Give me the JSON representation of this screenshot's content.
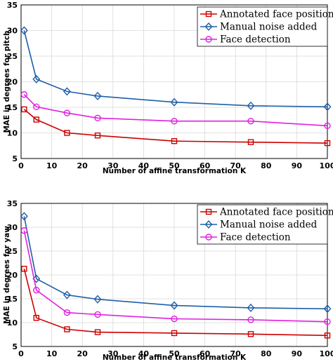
{
  "chart_data": [
    {
      "type": "line",
      "xlabel": "Number of affine transformation K",
      "ylabel": "MAE in degrees for pitch",
      "xlim": [
        0,
        100
      ],
      "ylim": [
        5,
        35
      ],
      "xticks": [
        0,
        10,
        20,
        30,
        40,
        50,
        60,
        70,
        80,
        90,
        100
      ],
      "yticks": [
        5,
        10,
        15,
        20,
        25,
        30,
        35
      ],
      "grid": true,
      "legend_position": "top-right",
      "x": [
        1,
        5,
        15,
        25,
        50,
        75,
        100
      ],
      "series": [
        {
          "name": "Annotated face position",
          "color": "#cc0000",
          "marker": "square",
          "values": [
            14.6,
            12.6,
            10.0,
            9.5,
            8.4,
            8.2,
            8.0
          ]
        },
        {
          "name": "Manual noise added",
          "color": "#1f5fa8",
          "marker": "diamond",
          "values": [
            30.0,
            20.5,
            18.1,
            17.2,
            16.0,
            15.3,
            15.1
          ]
        },
        {
          "name": "Face detection",
          "color": "#e020e0",
          "marker": "circle",
          "values": [
            17.5,
            15.1,
            13.9,
            12.9,
            12.3,
            12.3,
            11.4
          ]
        }
      ]
    },
    {
      "type": "line",
      "xlabel": "Number of affine transformation K",
      "ylabel": "MAE in degrees for yaw",
      "xlim": [
        0,
        100
      ],
      "ylim": [
        5,
        35
      ],
      "xticks": [
        0,
        10,
        20,
        30,
        40,
        50,
        60,
        70,
        80,
        90,
        100
      ],
      "yticks": [
        5,
        10,
        15,
        20,
        25,
        30,
        35
      ],
      "grid": true,
      "legend_position": "top-right",
      "x": [
        1,
        5,
        15,
        25,
        50,
        75,
        100
      ],
      "series": [
        {
          "name": "Annotated face position",
          "color": "#cc0000",
          "marker": "square",
          "values": [
            21.3,
            11.0,
            8.6,
            8.0,
            7.8,
            7.6,
            7.3
          ]
        },
        {
          "name": "Manual noise added",
          "color": "#1f5fa8",
          "marker": "diamond",
          "values": [
            32.3,
            19.2,
            15.8,
            14.9,
            13.6,
            13.1,
            12.9
          ]
        },
        {
          "name": "Face detection",
          "color": "#e020e0",
          "marker": "circle",
          "values": [
            29.3,
            16.8,
            12.1,
            11.7,
            10.8,
            10.6,
            10.2
          ]
        }
      ]
    }
  ]
}
